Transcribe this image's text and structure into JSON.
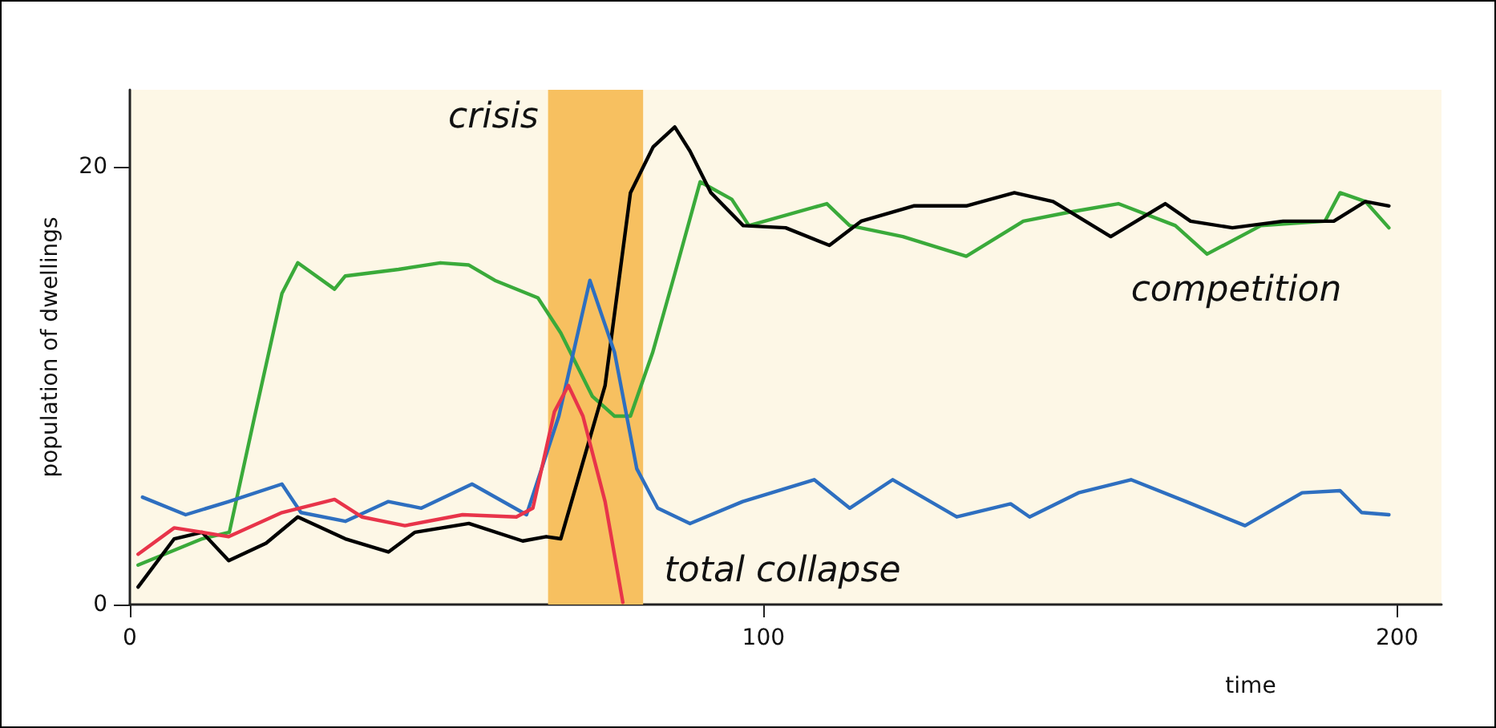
{
  "chart_data": {
    "type": "line",
    "xlabel": "time",
    "ylabel": "population of dwellings",
    "xlim": [
      0,
      207
    ],
    "ylim": [
      0,
      23.5
    ],
    "xticks": [
      0,
      100,
      200
    ],
    "yticks": [
      0,
      20
    ],
    "grid": false,
    "marker": "none",
    "line_style": "solid",
    "bands": [
      {
        "axis": "x",
        "from": 66,
        "to": 81,
        "label": "crisis",
        "color": "#f7c060"
      }
    ],
    "annotations": [
      "total collapse",
      "competition"
    ],
    "series": [
      {
        "color": "#3aaa3a",
        "x": [
          1.3,
          11.4,
          15.7,
          19.7,
          24,
          26.5,
          32.3,
          34,
          42.4,
          49,
          53.5,
          57.6,
          64.4,
          68,
          73,
          76.5,
          79,
          82.5,
          86,
          90,
          95,
          97.7,
          110,
          113.6,
          122,
          132,
          141,
          148,
          156,
          165,
          170,
          178.5,
          188.6,
          191,
          195,
          198.7
        ],
        "values": [
          1.8,
          3.0,
          3.3,
          8.6,
          14.2,
          15.6,
          14.4,
          15,
          15.3,
          15.6,
          15.5,
          14.8,
          14.0,
          12.4,
          9.5,
          8.6,
          8.6,
          11.5,
          15.1,
          19.3,
          18.5,
          17.3,
          18.3,
          17.3,
          16.8,
          15.9,
          17.5,
          17.9,
          18.3,
          17.3,
          16.0,
          17.3,
          17.5,
          18.8,
          18.4,
          17.2
        ]
      },
      {
        "color": "#000000",
        "x": [
          1.3,
          7,
          11.4,
          15.6,
          21.5,
          26.5,
          34,
          40.8,
          45,
          53.5,
          62,
          65.7,
          68,
          70.7,
          75,
          79,
          82.6,
          86,
          88.4,
          91.7,
          96.8,
          103.5,
          110.4,
          115.4,
          123.7,
          132,
          139.6,
          145.7,
          154.8,
          163.4,
          167.4,
          174,
          182,
          190,
          195,
          198.7
        ],
        "values": [
          0.8,
          3.0,
          3.3,
          2.0,
          2.8,
          4.0,
          3.0,
          2.4,
          3.3,
          3.7,
          2.9,
          3.1,
          3.0,
          5.7,
          10.0,
          18.8,
          20.9,
          21.8,
          20.7,
          18.8,
          17.3,
          17.2,
          16.4,
          17.5,
          18.2,
          18.2,
          18.8,
          18.4,
          16.8,
          18.3,
          17.5,
          17.2,
          17.5,
          17.5,
          18.4,
          18.2
        ]
      },
      {
        "color": "#2e6fc0",
        "x": [
          2,
          8.8,
          15.6,
          24,
          27,
          34,
          40.8,
          46,
          54,
          62.6,
          67.7,
          72.6,
          76.5,
          80,
          83.3,
          88.4,
          96.7,
          108,
          113.6,
          120.4,
          130.5,
          139,
          142,
          149.7,
          158,
          166.7,
          176,
          185,
          191,
          194.4,
          198.7
        ],
        "values": [
          4.9,
          4.1,
          4.7,
          5.5,
          4.2,
          3.8,
          4.7,
          4.4,
          5.5,
          4.1,
          8.6,
          14.8,
          11.5,
          6.2,
          4.4,
          3.7,
          4.7,
          5.7,
          4.4,
          5.7,
          4.0,
          4.6,
          4.0,
          5.1,
          5.7,
          4.7,
          3.6,
          5.1,
          5.2,
          4.2,
          4.1
        ]
      },
      {
        "color": "#e8344a",
        "x": [
          1.3,
          7,
          15.6,
          24,
          32.3,
          36.6,
          43.4,
          52.5,
          61,
          63.6,
          67,
          69.2,
          71.5,
          75,
          77.8
        ],
        "values": [
          2.3,
          3.5,
          3.1,
          4.2,
          4.8,
          4.0,
          3.6,
          4.1,
          4.0,
          4.4,
          8.8,
          10.0,
          8.6,
          4.7,
          0.1
        ]
      }
    ]
  }
}
